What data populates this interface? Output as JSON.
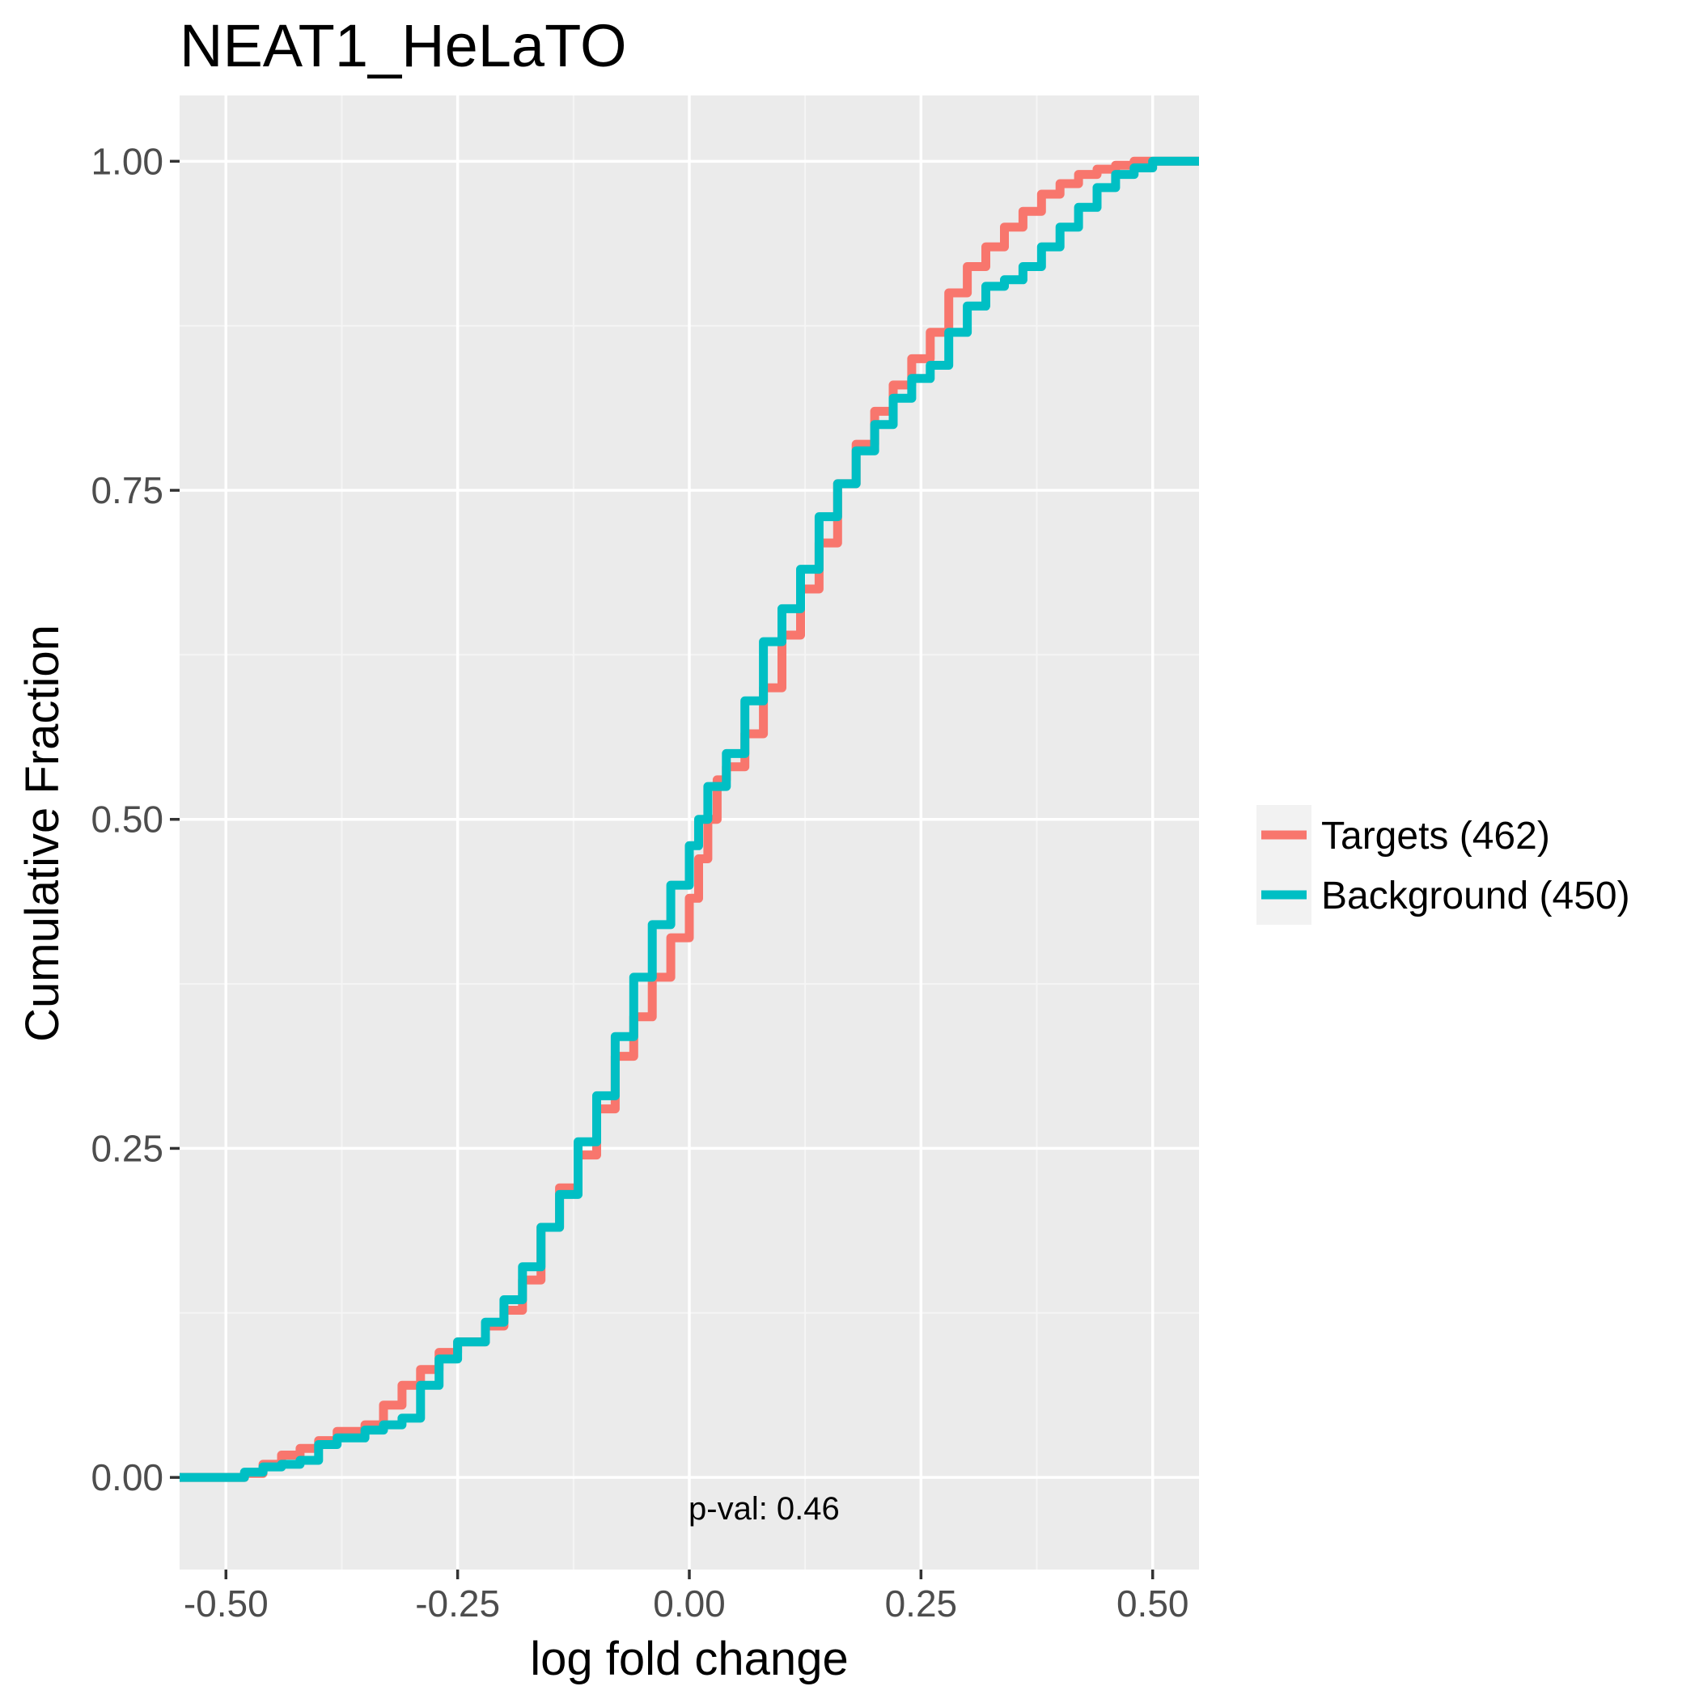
{
  "chart_data": {
    "type": "line",
    "title": "NEAT1_HeLaTO",
    "xlabel": "log fold change",
    "ylabel": "Cumulative Fraction",
    "xlim": [
      -0.55,
      0.55
    ],
    "ylim": [
      -0.07,
      1.05
    ],
    "x_ticks": [
      -0.5,
      -0.25,
      0.0,
      0.25,
      0.5
    ],
    "x_tick_labels": [
      "-0.50",
      "-0.25",
      "0.00",
      "0.25",
      "0.50"
    ],
    "y_ticks": [
      0.0,
      0.25,
      0.5,
      0.75,
      1.0
    ],
    "y_tick_labels": [
      "0.00",
      "0.25",
      "0.50",
      "0.75",
      "1.00"
    ],
    "grid": true,
    "legend_position": "right",
    "annotation": "p-val:  0.46",
    "series": [
      {
        "name": "Targets (462)",
        "color": "#F8766D",
        "x": [
          -0.55,
          -0.5,
          -0.48,
          -0.46,
          -0.44,
          -0.42,
          -0.4,
          -0.38,
          -0.35,
          -0.33,
          -0.31,
          -0.29,
          -0.27,
          -0.25,
          -0.22,
          -0.2,
          -0.18,
          -0.16,
          -0.14,
          -0.12,
          -0.1,
          -0.08,
          -0.06,
          -0.04,
          -0.02,
          0.0,
          0.01,
          0.02,
          0.03,
          0.04,
          0.06,
          0.08,
          0.1,
          0.12,
          0.14,
          0.16,
          0.18,
          0.2,
          0.22,
          0.24,
          0.26,
          0.28,
          0.3,
          0.32,
          0.34,
          0.36,
          0.38,
          0.4,
          0.42,
          0.44,
          0.46,
          0.48,
          0.5,
          0.55
        ],
        "y": [
          0.0,
          0.0,
          0.003,
          0.01,
          0.017,
          0.022,
          0.028,
          0.035,
          0.04,
          0.055,
          0.07,
          0.082,
          0.095,
          0.103,
          0.115,
          0.127,
          0.15,
          0.19,
          0.22,
          0.245,
          0.28,
          0.32,
          0.35,
          0.38,
          0.41,
          0.44,
          0.47,
          0.5,
          0.53,
          0.54,
          0.565,
          0.6,
          0.64,
          0.675,
          0.71,
          0.755,
          0.785,
          0.81,
          0.83,
          0.85,
          0.87,
          0.9,
          0.92,
          0.935,
          0.95,
          0.962,
          0.975,
          0.983,
          0.99,
          0.994,
          0.997,
          1.0,
          1.0,
          1.0
        ]
      },
      {
        "name": "Background (450)",
        "color": "#00BFC4",
        "x": [
          -0.55,
          -0.5,
          -0.48,
          -0.46,
          -0.44,
          -0.42,
          -0.4,
          -0.38,
          -0.35,
          -0.33,
          -0.31,
          -0.29,
          -0.27,
          -0.25,
          -0.22,
          -0.2,
          -0.18,
          -0.16,
          -0.14,
          -0.12,
          -0.1,
          -0.08,
          -0.06,
          -0.04,
          -0.02,
          0.0,
          0.01,
          0.02,
          0.04,
          0.06,
          0.08,
          0.1,
          0.12,
          0.14,
          0.16,
          0.18,
          0.2,
          0.22,
          0.24,
          0.26,
          0.28,
          0.3,
          0.32,
          0.34,
          0.36,
          0.38,
          0.4,
          0.42,
          0.44,
          0.46,
          0.48,
          0.5,
          0.55
        ],
        "y": [
          0.0,
          0.0,
          0.004,
          0.008,
          0.01,
          0.013,
          0.025,
          0.03,
          0.036,
          0.04,
          0.045,
          0.07,
          0.09,
          0.103,
          0.118,
          0.135,
          0.16,
          0.19,
          0.215,
          0.255,
          0.29,
          0.335,
          0.38,
          0.42,
          0.45,
          0.48,
          0.5,
          0.525,
          0.55,
          0.59,
          0.635,
          0.66,
          0.69,
          0.73,
          0.755,
          0.78,
          0.8,
          0.82,
          0.835,
          0.845,
          0.87,
          0.89,
          0.905,
          0.91,
          0.92,
          0.935,
          0.95,
          0.965,
          0.98,
          0.99,
          0.995,
          1.0,
          1.0
        ]
      }
    ]
  }
}
